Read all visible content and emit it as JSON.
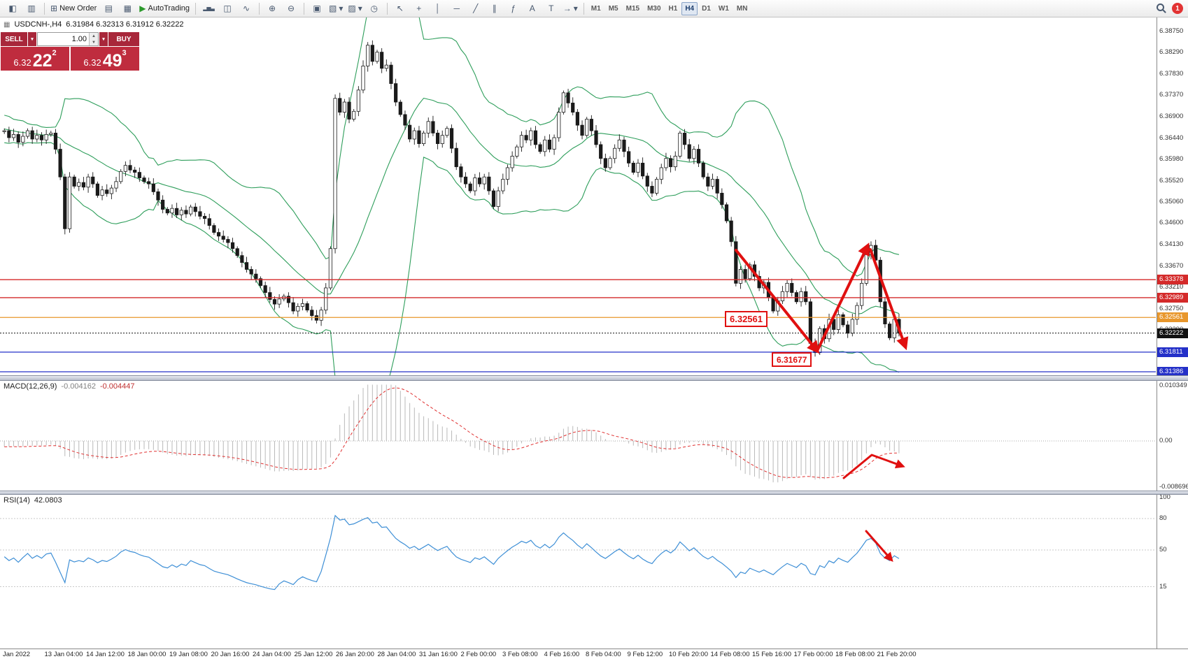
{
  "toolbar": {
    "new_order_label": "New Order",
    "autotrading_label": "AutoTrading",
    "timeframes": [
      "M1",
      "M5",
      "M15",
      "M30",
      "H1",
      "H4",
      "D1",
      "W1",
      "MN"
    ],
    "active_timeframe": "H4",
    "notification_count": "1",
    "icons": {
      "chart_window": "◧",
      "market_watch": "▥",
      "new_order": "⊞",
      "charts": "▤",
      "data_window": "▦",
      "autotrading_play": "▶",
      "bar_chart": "▂▅▃",
      "candlestick_chart": "◫",
      "line_chart": "∿",
      "zoom_in": "⊕",
      "zoom_out": "⊖",
      "tile_windows": "▣",
      "new_chart": "▧",
      "profiles": "▨",
      "clock": "◷",
      "cursor": "↖",
      "crosshair": "+",
      "vertical_line": "│",
      "horizontal_line": "─",
      "trendline": "╱",
      "channel": "∥",
      "fibonacci": "ƒ",
      "text": "A",
      "label": "T",
      "shapes": "→",
      "dropdown": "▾"
    }
  },
  "chart_header": {
    "symbol_period": "USDCNH-,H4",
    "ohlc": "6.31984 6.32313 6.31912 6.32222"
  },
  "trade_panel": {
    "sell_label": "SELL",
    "buy_label": "BUY",
    "volume": "1.00",
    "sell_price_main": "6.32",
    "sell_price_big": "22",
    "sell_price_sup": "2",
    "buy_price_main": "6.32",
    "buy_price_big": "49",
    "buy_price_sup": "3"
  },
  "price_axis_ticks": [
    {
      "label": "6.38750",
      "value": 6.3875
    },
    {
      "label": "6.38290",
      "value": 6.3829
    },
    {
      "label": "6.37830",
      "value": 6.3783
    },
    {
      "label": "6.37370",
      "value": 6.3737
    },
    {
      "label": "6.36900",
      "value": 6.369
    },
    {
      "label": "6.36440",
      "value": 6.3644
    },
    {
      "label": "6.35980",
      "value": 6.3598
    },
    {
      "label": "6.35520",
      "value": 6.3552
    },
    {
      "label": "6.35060",
      "value": 6.3506
    },
    {
      "label": "6.34600",
      "value": 6.346
    },
    {
      "label": "6.34130",
      "value": 6.3413
    },
    {
      "label": "6.33670",
      "value": 6.3367
    },
    {
      "label": "6.33210",
      "value": 6.3321
    },
    {
      "label": "6.32750",
      "value": 6.3275
    },
    {
      "label": "6.32290",
      "value": 6.3229
    }
  ],
  "price_lines": [
    {
      "label": "6.33378",
      "value": 6.33378,
      "color": "#d42a2a",
      "current": false
    },
    {
      "label": "6.32989",
      "value": 6.32989,
      "color": "#d42a2a",
      "current": false
    },
    {
      "label": "6.32561",
      "value": 6.32561,
      "color": "#e8972c",
      "current": false
    },
    {
      "label": "6.32222",
      "value": 6.32222,
      "color": "#111111",
      "current": true
    },
    {
      "label": "6.31811",
      "value": 6.31811,
      "color": "#2430c8",
      "current": false
    },
    {
      "label": "6.31386",
      "value": 6.31386,
      "color": "#2430c8",
      "current": false
    }
  ],
  "callouts": [
    {
      "text": "6.32561"
    },
    {
      "text": "6.31677"
    }
  ],
  "macd_panel": {
    "title": "MACD(12,26,9)",
    "value_main": "-0.004162",
    "value_signal": "-0.004447",
    "axis": [
      {
        "label": "0.010349",
        "value": 0.010349
      },
      {
        "label": "0.00",
        "value": 0
      },
      {
        "label": "-0.008696",
        "value": -0.008696
      }
    ]
  },
  "rsi_panel": {
    "title": "RSI(14)",
    "value": "42.0803",
    "axis": [
      {
        "label": "100",
        "value": 100
      },
      {
        "label": "80",
        "value": 80
      },
      {
        "label": "50",
        "value": 50
      },
      {
        "label": "15",
        "value": 15
      }
    ]
  },
  "time_axis": [
    "Jan 2022",
    "13 Jan 04:00",
    "14 Jan 12:00",
    "18 Jan 00:00",
    "19 Jan 08:00",
    "20 Jan 16:00",
    "24 Jan 04:00",
    "25 Jan 12:00",
    "26 Jan 20:00",
    "28 Jan 04:00",
    "31 Jan 16:00",
    "2 Feb 00:00",
    "3 Feb 08:00",
    "4 Feb 16:00",
    "8 Feb 04:00",
    "9 Feb 12:00",
    "10 Feb 20:00",
    "14 Feb 08:00",
    "15 Feb 16:00",
    "17 Feb 00:00",
    "18 Feb 08:00",
    "21 Feb 20:00"
  ],
  "chart_data": {
    "type": "candlestick",
    "symbol": "USDCNH-",
    "period": "H4",
    "price_range": [
      6.3131,
      6.3905
    ],
    "indicators": {
      "bollinger": [
        20,
        2
      ],
      "macd": [
        12,
        26,
        9
      ],
      "rsi": [
        14
      ]
    },
    "warmup_closes": [
      6.37,
      6.3685,
      6.3695,
      6.368,
      6.367,
      6.3688,
      6.3672,
      6.366,
      6.3676,
      6.3662,
      6.365,
      6.3668,
      6.3655,
      6.3645,
      6.3662,
      6.365,
      6.364,
      6.3655,
      6.3645,
      6.3658
    ],
    "closes": [
      6.366,
      6.3645,
      6.3652,
      6.3635,
      6.3648,
      6.366,
      6.3642,
      6.365,
      6.364,
      6.3652,
      6.3655,
      6.362,
      6.356,
      6.3448,
      6.356,
      6.354,
      6.3548,
      6.3538,
      6.356,
      6.3545,
      6.352,
      6.3532,
      6.3524,
      6.3536,
      6.355,
      6.3572,
      6.3585,
      6.3575,
      6.357,
      6.3558,
      6.355,
      6.3545,
      6.3528,
      6.351,
      6.349,
      6.3482,
      6.3492,
      6.3478,
      6.3488,
      6.348,
      6.3495,
      6.3485,
      6.3475,
      6.347,
      6.3455,
      6.344,
      6.3432,
      6.3425,
      6.3418,
      6.3405,
      6.339,
      6.3375,
      6.336,
      6.335,
      6.334,
      6.3325,
      6.331,
      6.3295,
      6.3285,
      6.3296,
      6.3302,
      6.3288,
      6.327,
      6.328,
      6.3286,
      6.3272,
      6.326,
      6.325,
      6.3272,
      6.332,
      6.3405,
      6.373,
      6.37,
      6.3722,
      6.3685,
      6.3702,
      6.3748,
      6.38,
      6.3845,
      6.381,
      6.383,
      6.3795,
      6.3802,
      6.3762,
      6.3722,
      6.3695,
      6.3672,
      6.3642,
      6.366,
      6.3632,
      6.3655,
      6.368,
      6.3655,
      6.3632,
      6.365,
      6.3665,
      6.3622,
      6.3582,
      6.356,
      6.3545,
      6.353,
      6.3558,
      6.3545,
      6.356,
      6.353,
      6.3496,
      6.353,
      6.3555,
      6.358,
      6.3605,
      6.3625,
      6.365,
      6.364,
      6.366,
      6.363,
      6.3615,
      6.364,
      6.362,
      6.3645,
      6.37,
      6.3742,
      6.372,
      6.37,
      6.3672,
      6.365,
      6.3685,
      6.366,
      6.363,
      6.36,
      6.358,
      6.36,
      6.3622,
      6.364,
      6.3615,
      6.359,
      6.357,
      6.359,
      6.3562,
      6.354,
      6.3525,
      6.3555,
      6.358,
      6.36,
      6.3582,
      6.3605,
      6.3655,
      6.363,
      6.36,
      6.362,
      6.359,
      6.356,
      6.354,
      6.3555,
      6.3525,
      6.35,
      6.3465,
      6.342,
      6.333,
      6.336,
      6.334,
      6.337,
      6.3345,
      6.332,
      6.3332,
      6.33,
      6.327,
      6.3292,
      6.3312,
      6.333,
      6.331,
      6.329,
      6.3312,
      6.329,
      6.32,
      6.318,
      6.3232,
      6.321,
      6.3252,
      6.323,
      6.3262,
      6.324,
      6.3222,
      6.3252,
      6.3282,
      6.333,
      6.3392,
      6.3412,
      6.338,
      6.329,
      6.3242,
      6.3212,
      6.3252,
      6.3222
    ]
  }
}
